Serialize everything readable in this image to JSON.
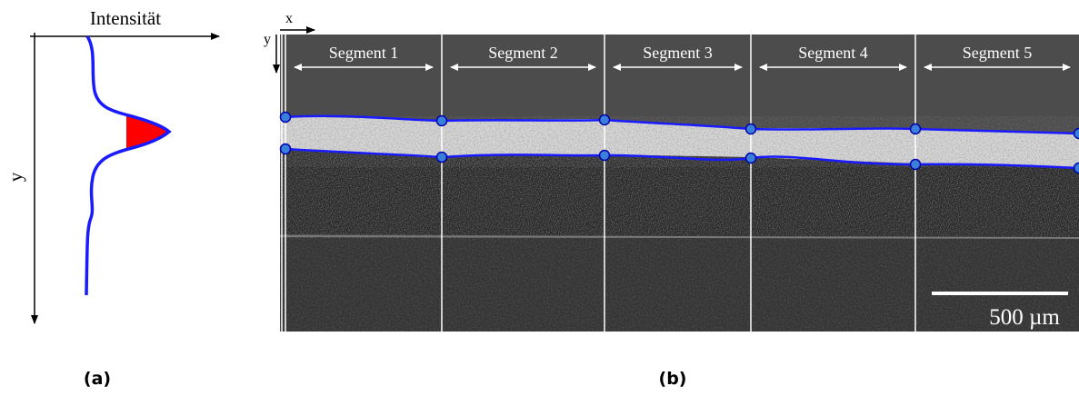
{
  "panel_a": {
    "axis_label_x": "Intensität",
    "axis_label_y": "y",
    "caption": "(a)"
  },
  "panel_b": {
    "axis_x": "x",
    "axis_y": "y",
    "segments": [
      "Segment 1",
      "Segment 2",
      "Segment 3",
      "Segment 4",
      "Segment 5"
    ],
    "scale_bar": "500 µm",
    "caption": "(b)"
  }
}
